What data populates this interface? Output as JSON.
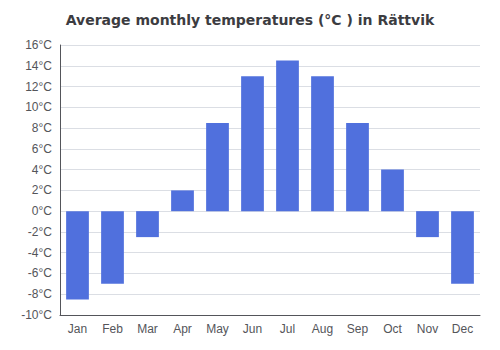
{
  "chart_data": {
    "type": "bar",
    "title": "Average monthly temperatures (°C ) in Rättvik",
    "categories": [
      "Jan",
      "Feb",
      "Mar",
      "Apr",
      "May",
      "Jun",
      "Jul",
      "Aug",
      "Sep",
      "Oct",
      "Nov",
      "Dec"
    ],
    "values": [
      -8.5,
      -7.0,
      -2.5,
      2.0,
      8.5,
      13.0,
      14.5,
      13.0,
      8.5,
      4.0,
      -2.5,
      -7.0
    ],
    "ylim": [
      -10,
      16
    ],
    "yticks": [
      {
        "value": -10,
        "label": "-10°C"
      },
      {
        "value": -8,
        "label": "-8°C"
      },
      {
        "value": -6,
        "label": "-6°C"
      },
      {
        "value": -4,
        "label": "-4°C"
      },
      {
        "value": -2,
        "label": "-2°C"
      },
      {
        "value": 0,
        "label": "0°C"
      },
      {
        "value": 2,
        "label": "2°C"
      },
      {
        "value": 4,
        "label": "4°C"
      },
      {
        "value": 6,
        "label": "6°C"
      },
      {
        "value": 8,
        "label": "8°C"
      },
      {
        "value": 10,
        "label": "10°C"
      },
      {
        "value": 12,
        "label": "12°C"
      },
      {
        "value": 14,
        "label": "14°C"
      },
      {
        "value": 16,
        "label": "16°C"
      }
    ],
    "grid": true
  }
}
